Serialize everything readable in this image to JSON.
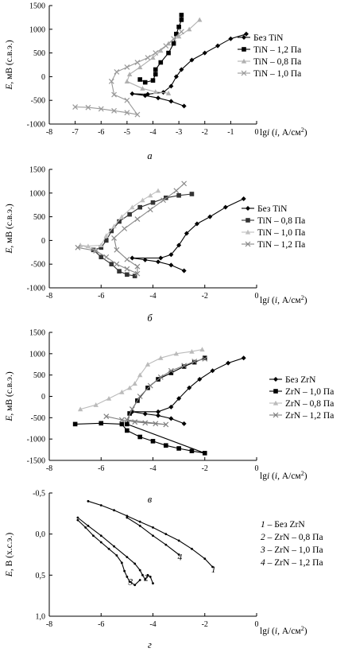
{
  "chart_data": [
    {
      "type": "line",
      "panel_label": "а",
      "xlabel_prefix": "lg",
      "xlabel": "i",
      "xlabel_suffix": " (",
      "xlabel_var": "i",
      "xlabel_units": ", А/см",
      "xlabel_sup": "2",
      "xlabel_end": ")",
      "ylabel_prefix": "E",
      "ylabel": ", мВ (с.в.э.)",
      "xlim": [
        -8,
        0
      ],
      "ylim": [
        1500,
        -1000
      ],
      "xticks": [
        "-8",
        "-7",
        "-6",
        "-5",
        "-4",
        "-3",
        "-2",
        "-1",
        "0"
      ],
      "yticks": [
        "-1000",
        "-500",
        "0",
        "500",
        "1000",
        "1500"
      ],
      "legend_position": "right",
      "series": [
        {
          "name": "Без TiN",
          "marker": "diamond",
          "color": "#000000",
          "x": [
            -2.8,
            -3.3,
            -3.8,
            -4.3,
            -4.8,
            -4.2,
            -3.6,
            -3.3,
            -3.1,
            -2.9,
            -2.5,
            -2.0,
            -1.5,
            -1.0,
            -0.4
          ],
          "y": [
            -620,
            -520,
            -450,
            -400,
            -360,
            -370,
            -330,
            -200,
            0,
            150,
            350,
            500,
            650,
            800,
            900
          ]
        },
        {
          "name": "TiN – 1,2 Па",
          "marker": "square",
          "color": "#000000",
          "x": [
            -4.5,
            -4.3,
            -4.0,
            -3.9,
            -3.9,
            -3.7,
            -3.4,
            -3.2,
            -3.1,
            -3.0,
            -2.9,
            -2.9
          ],
          "y": [
            -60,
            -120,
            -80,
            50,
            150,
            300,
            500,
            700,
            900,
            1050,
            1200,
            1300
          ]
        },
        {
          "name": "TiN – 0,8 Па",
          "marker": "triangle",
          "color": "#b0b0b0",
          "x": [
            -3.4,
            -3.9,
            -4.4,
            -5.0,
            -4.9,
            -4.5,
            -4.0,
            -3.7,
            -3.4,
            -3.0,
            -2.6,
            -2.2
          ],
          "y": [
            -350,
            -320,
            -250,
            -100,
            50,
            200,
            400,
            550,
            700,
            850,
            1000,
            1200
          ]
        },
        {
          "name": "TiN – 1,0 Па",
          "marker": "x",
          "color": "#999999",
          "x": [
            -7.0,
            -6.5,
            -6.0,
            -5.5,
            -5.0,
            -4.6,
            -5.0,
            -5.5,
            -5.6,
            -5.4,
            -5.0,
            -4.6,
            -4.2,
            -3.9,
            -3.5,
            -3.2,
            -2.9
          ],
          "y": [
            -640,
            -650,
            -680,
            -720,
            -760,
            -800,
            -500,
            -380,
            -100,
            100,
            200,
            300,
            400,
            500,
            650,
            800,
            950
          ]
        }
      ]
    },
    {
      "type": "line",
      "panel_label": "б",
      "xlabel_prefix": "lg",
      "xlabel": "i",
      "xlabel_suffix": " (",
      "xlabel_var": "i",
      "xlabel_units": ", А/см",
      "xlabel_sup": "2",
      "xlabel_end": ")",
      "ylabel_prefix": "E",
      "ylabel": ", мВ (с.в.э.)",
      "xlim": [
        -8,
        0
      ],
      "ylim": [
        1500,
        -1000
      ],
      "xticks": [
        "-8",
        "-6",
        "-4",
        "-2",
        "0"
      ],
      "yticks": [
        "-1000",
        "-500",
        "0",
        "500",
        "1000",
        "1500"
      ],
      "legend_position": "right",
      "series": [
        {
          "name": "Без TiN",
          "marker": "diamond",
          "color": "#000000",
          "x": [
            -2.8,
            -3.3,
            -3.8,
            -4.3,
            -4.8,
            -3.7,
            -3.3,
            -3.0,
            -2.7,
            -2.3,
            -1.8,
            -1.2,
            -0.5
          ],
          "y": [
            -640,
            -520,
            -450,
            -410,
            -370,
            -370,
            -300,
            -100,
            150,
            350,
            500,
            700,
            880
          ]
        },
        {
          "name": "TiN – 0,8 Па",
          "marker": "square",
          "color": "#333333",
          "x": [
            -4.7,
            -5.0,
            -5.3,
            -5.6,
            -6.0,
            -6.3,
            -6.0,
            -5.8,
            -5.6,
            -5.3,
            -4.9,
            -4.5,
            -4.0,
            -3.5,
            -3.0,
            -2.5
          ],
          "y": [
            -750,
            -720,
            -650,
            -500,
            -350,
            -200,
            -150,
            0,
            200,
            400,
            550,
            700,
            800,
            900,
            950,
            980
          ]
        },
        {
          "name": "TiN – 1,0 Па",
          "marker": "triangle",
          "color": "#c0c0c0",
          "x": [
            -6.2,
            -6.8,
            -6.5,
            -6.0,
            -5.8,
            -5.5,
            -5.2,
            -4.8,
            -4.4,
            -4.1,
            -3.8
          ],
          "y": [
            -200,
            -100,
            -120,
            -100,
            100,
            300,
            500,
            700,
            850,
            950,
            1050
          ]
        },
        {
          "name": "TiN – 1,2 Па",
          "marker": "x",
          "color": "#888888",
          "x": [
            -6.9,
            -6.2,
            -5.8,
            -5.4,
            -5.0,
            -4.6,
            -4.6,
            -5.0,
            -5.4,
            -5.5,
            -5.1,
            -4.6,
            -4.1,
            -3.6,
            -3.1,
            -2.8
          ],
          "y": [
            -150,
            -220,
            -350,
            -500,
            -600,
            -700,
            -550,
            -400,
            -200,
            50,
            250,
            450,
            650,
            850,
            1050,
            1200
          ]
        }
      ]
    },
    {
      "type": "line",
      "panel_label": "в",
      "xlabel_prefix": "lg",
      "xlabel": "i",
      "xlabel_suffix": " (",
      "xlabel_var": "i",
      "xlabel_units": ", А/см",
      "xlabel_sup": "2",
      "xlabel_end": ")",
      "ylabel_prefix": "E",
      "ylabel": ", мВ (с.в.э.)",
      "xlim": [
        -8,
        0
      ],
      "ylim": [
        1500,
        -1500
      ],
      "xticks": [
        "-8",
        "-6",
        "-4",
        "-2",
        "0"
      ],
      "yticks": [
        "-1500",
        "-1000",
        "-500",
        "0",
        "500",
        "1000",
        "1500"
      ],
      "legend_position": "right",
      "series": [
        {
          "name": "Без ZrN",
          "marker": "diamond",
          "color": "#000000",
          "x": [
            -2.8,
            -3.3,
            -3.8,
            -4.3,
            -4.8,
            -3.8,
            -3.3,
            -3.0,
            -2.6,
            -2.2,
            -1.7,
            -1.1,
            -0.5
          ],
          "y": [
            -640,
            -520,
            -450,
            -410,
            -360,
            -360,
            -250,
            -50,
            200,
            400,
            600,
            780,
            900
          ]
        },
        {
          "name": "ZrN – 1,0 Па",
          "marker": "square",
          "color": "#000000",
          "x": [
            -7.0,
            -6.0,
            -5.2,
            -5.0,
            -4.5,
            -4.0,
            -3.5,
            -3.0,
            -2.5,
            -2.0,
            -5.0,
            -4.9,
            -4.6,
            -4.2,
            -3.8,
            -3.3,
            -2.8,
            -2.4,
            -2.0
          ],
          "y": [
            -650,
            -630,
            -650,
            -800,
            -950,
            -1050,
            -1150,
            -1220,
            -1280,
            -1330,
            -650,
            -400,
            -100,
            200,
            400,
            550,
            700,
            800,
            900
          ]
        },
        {
          "name": "ZrN – 0,8 Па",
          "marker": "triangle",
          "color": "#bbbbbb",
          "x": [
            -6.8,
            -6.2,
            -5.7,
            -5.2,
            -4.9,
            -4.7,
            -4.5,
            -4.2,
            -3.7,
            -3.1,
            -2.5,
            -2.1
          ],
          "y": [
            -300,
            -200,
            -50,
            100,
            200,
            300,
            500,
            750,
            900,
            1000,
            1050,
            1100
          ]
        },
        {
          "name": "ZrN – 1,2 Па",
          "marker": "x",
          "color": "#808080",
          "x": [
            -5.8,
            -5.2,
            -4.7,
            -4.3,
            -3.9,
            -3.5,
            -5.0,
            -4.8,
            -4.5,
            -4.1,
            -3.7,
            -3.3,
            -2.8,
            -2.4,
            -2.0
          ],
          "y": [
            -470,
            -550,
            -600,
            -620,
            -640,
            -660,
            -550,
            -300,
            0,
            250,
            450,
            600,
            720,
            820,
            880
          ]
        }
      ]
    },
    {
      "type": "line",
      "panel_label": "г",
      "xlabel_prefix": "lg",
      "xlabel": "i",
      "xlabel_suffix": " (",
      "xlabel_var": "i",
      "xlabel_units": ", А/см",
      "xlabel_sup": "2",
      "xlabel_end": ")",
      "ylabel_prefix": "E",
      "ylabel": ", В (х.с.э.)",
      "xlim": [
        -8,
        0
      ],
      "ylim": [
        -0.5,
        1.0
      ],
      "xticks": [
        "-8",
        "-6",
        "-4",
        "-2",
        "0"
      ],
      "yticks": [
        "1,0",
        "0,5",
        "0,0",
        "-0,5"
      ],
      "legend_position": "right",
      "legend": [
        {
          "num": "1",
          "text": " – Без ZrN"
        },
        {
          "num": "2",
          "text": " – ZrN – 0,8 Па"
        },
        {
          "num": "3",
          "text": " – ZrN – 1,0 Па"
        },
        {
          "num": "4",
          "text": " – ZrN – 1,2 Па"
        }
      ],
      "series": [
        {
          "name": "1",
          "marker": "dot",
          "color": "#000000",
          "x": [
            -6.5,
            -6.0,
            -5.5,
            -5.0,
            -4.5,
            -4.0,
            -3.5,
            -3.0,
            -2.5,
            -2.0,
            -1.7
          ],
          "y": [
            -0.4,
            -0.35,
            -0.29,
            -0.22,
            -0.15,
            -0.08,
            0.0,
            0.08,
            0.18,
            0.3,
            0.4
          ]
        },
        {
          "name": "2",
          "marker": "dot",
          "color": "#000000",
          "x": [
            -6.9,
            -6.5,
            -6.0,
            -5.5,
            -5.0,
            -4.7,
            -4.5,
            -4.4,
            -4.3,
            -4.2,
            -4.1,
            -4.0
          ],
          "y": [
            -0.2,
            -0.1,
            0.02,
            0.15,
            0.28,
            0.36,
            0.44,
            0.5,
            0.55,
            0.5,
            0.52,
            0.6
          ]
        },
        {
          "name": "3",
          "marker": "dot",
          "color": "#000000",
          "x": [
            -6.9,
            -6.6,
            -6.3,
            -6.0,
            -5.7,
            -5.4,
            -5.2,
            -5.1,
            -5.0,
            -4.9,
            -4.7,
            -4.5
          ],
          "y": [
            -0.17,
            -0.08,
            0.02,
            0.1,
            0.18,
            0.26,
            0.35,
            0.45,
            0.52,
            0.58,
            0.62,
            0.56
          ]
        },
        {
          "name": "4",
          "marker": "dot",
          "color": "#000000",
          "x": [
            -5.0,
            -4.5,
            -4.0,
            -3.5,
            -3.0
          ],
          "y": [
            -0.2,
            -0.1,
            0.02,
            0.13,
            0.25
          ]
        }
      ],
      "curve_labels": [
        "1",
        "2",
        "3",
        "4"
      ]
    }
  ]
}
